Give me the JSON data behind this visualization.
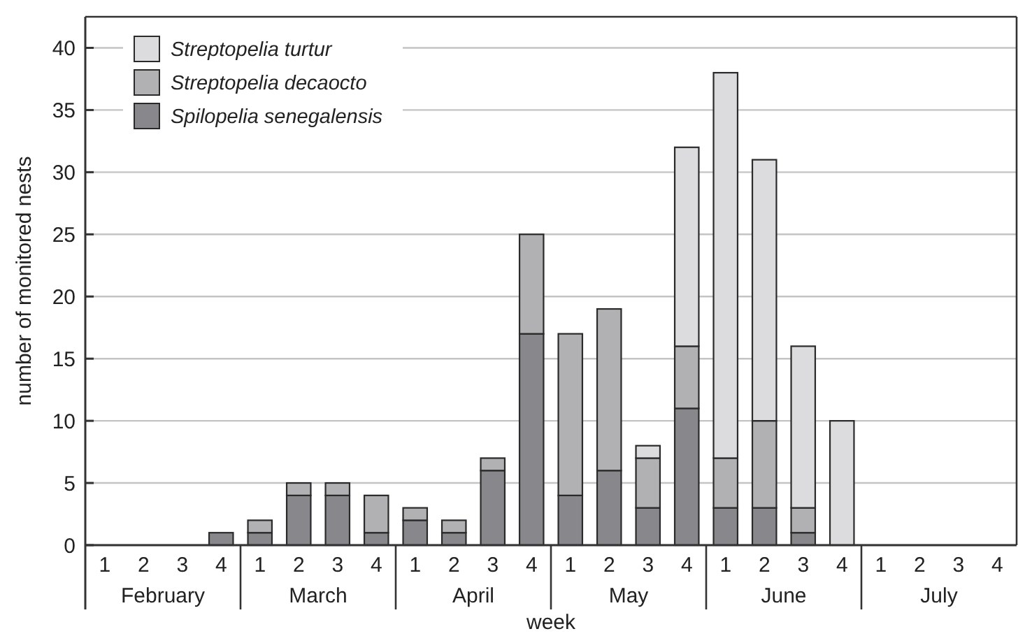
{
  "chart_data": {
    "type": "bar",
    "stacked": true,
    "xlabel": "week",
    "ylabel": "number of monitored nests",
    "categories": [
      "1",
      "2",
      "3",
      "4",
      "1",
      "2",
      "3",
      "4",
      "1",
      "2",
      "3",
      "4",
      "1",
      "2",
      "3",
      "4",
      "1",
      "2",
      "3",
      "4",
      "1",
      "2",
      "3",
      "4"
    ],
    "annotations": [
      "February",
      "March",
      "April",
      "May",
      "June",
      "July"
    ],
    "series": [
      {
        "name": "Spilopelia senegalensis",
        "color": "#88888c",
        "values": [
          0,
          0,
          0,
          1,
          1,
          4,
          4,
          1,
          2,
          1,
          6,
          17,
          4,
          6,
          3,
          11,
          3,
          3,
          1,
          0,
          0,
          0,
          0,
          0
        ]
      },
      {
        "name": "Streptopelia decaocto",
        "color": "#b1b1b4",
        "values": [
          0,
          0,
          0,
          0,
          1,
          1,
          1,
          3,
          1,
          1,
          1,
          8,
          13,
          13,
          4,
          5,
          4,
          7,
          2,
          0,
          0,
          0,
          0,
          0
        ]
      },
      {
        "name": "Streptopelia turtur",
        "color": "#dcdcde",
        "values": [
          0,
          0,
          0,
          0,
          0,
          0,
          0,
          0,
          0,
          0,
          0,
          0,
          0,
          0,
          1,
          16,
          31,
          21,
          13,
          10,
          0,
          0,
          0,
          0
        ]
      }
    ],
    "ylim": [
      0,
      42.5
    ],
    "yticks": [
      0,
      5,
      10,
      15,
      20,
      25,
      30,
      35,
      40
    ],
    "grid": "y",
    "legend": "top left"
  }
}
